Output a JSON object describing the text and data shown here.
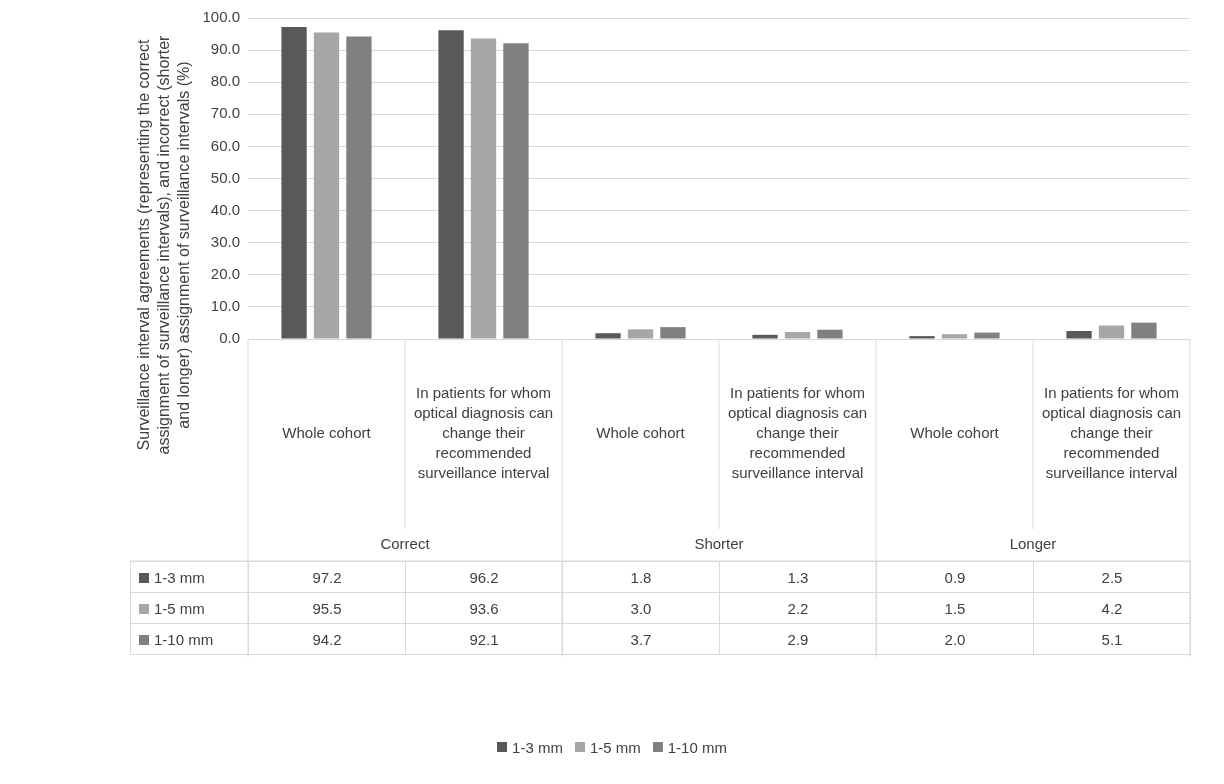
{
  "chart_data": {
    "type": "bar",
    "ylabel": "Surveillance interval agreements (representing the correct assignment of surveillance intervals), and incorrect (shorter and longer) assignment of surveillance intervals (%)",
    "categories": [
      "Whole cohort",
      "In patients for whom optical diagnosis can change their recommended surveillance interval",
      "Whole cohort",
      "In patients for whom optical diagnosis can change their recommended surveillance interval",
      "Whole cohort",
      "In patients for whom optical diagnosis can change their recommended surveillance interval"
    ],
    "annotations": [
      "Correct",
      "Shorter",
      "Longer"
    ],
    "series": [
      {
        "name": "1-3 mm",
        "color": "#595959",
        "values": [
          97.2,
          96.2,
          1.8,
          1.3,
          0.9,
          2.5
        ],
        "value_labels": [
          "97.2",
          "96.2",
          "1.8",
          "1.3",
          "0.9",
          "2.5"
        ]
      },
      {
        "name": "1-5 mm",
        "color": "#a6a6a6",
        "values": [
          95.5,
          93.6,
          3.0,
          2.2,
          1.5,
          4.2
        ],
        "value_labels": [
          "95.5",
          "93.6",
          "3.0",
          "2.2",
          "1.5",
          "4.2"
        ]
      },
      {
        "name": "1-10 mm",
        "color": "#808080",
        "values": [
          94.2,
          92.1,
          3.7,
          2.9,
          2.0,
          5.1
        ],
        "value_labels": [
          "94.2",
          "92.1",
          "3.7",
          "2.9",
          "2.0",
          "5.1"
        ]
      }
    ],
    "ylim": [
      0,
      100
    ],
    "yticks": [
      {
        "value": 0,
        "label": "0.0"
      },
      {
        "value": 10,
        "label": "10.0"
      },
      {
        "value": 20,
        "label": "20.0"
      },
      {
        "value": 30,
        "label": "30.0"
      },
      {
        "value": 40,
        "label": "40.0"
      },
      {
        "value": 50,
        "label": "50.0"
      },
      {
        "value": 60,
        "label": "60.0"
      },
      {
        "value": 70,
        "label": "70.0"
      },
      {
        "value": 80,
        "label": "80.0"
      },
      {
        "value": 90,
        "label": "90.0"
      },
      {
        "value": 100,
        "label": "100.0"
      }
    ],
    "grid": "y",
    "legend": "bottom"
  }
}
